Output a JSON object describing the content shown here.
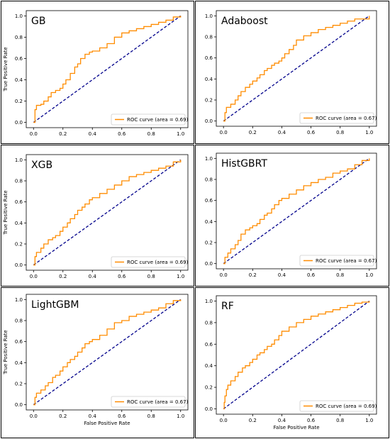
{
  "colors": {
    "roc": "#ff8c00",
    "chance": "#00008b",
    "panel_border": "#000000"
  },
  "chart_data": [
    {
      "type": "line",
      "title": "GB",
      "xlabel": "",
      "ylabel": "True Positive Rate",
      "xlim": [
        0,
        1
      ],
      "ylim": [
        0,
        1
      ],
      "xticks": [
        "0.0",
        "0.2",
        "0.4",
        "0.6",
        "0.8",
        "1.0"
      ],
      "yticks": [
        "0.0",
        "0.2",
        "0.4",
        "0.6",
        "0.8",
        "1.0"
      ],
      "legend": "ROC curve (area = 0.69)",
      "legend_position": "lower-right",
      "series": [
        {
          "x": [
            0,
            0.01,
            0.02,
            0.05,
            0.07,
            0.1,
            0.12,
            0.15,
            0.18,
            0.2,
            0.22,
            0.25,
            0.28,
            0.3,
            0.32,
            0.35,
            0.38,
            0.4,
            0.45,
            0.5,
            0.55,
            0.6,
            0.65,
            0.7,
            0.75,
            0.8,
            0.85,
            0.9,
            0.95,
            1.0
          ],
          "y": [
            0,
            0.12,
            0.16,
            0.17,
            0.2,
            0.24,
            0.28,
            0.3,
            0.32,
            0.36,
            0.4,
            0.46,
            0.52,
            0.55,
            0.6,
            0.64,
            0.66,
            0.67,
            0.7,
            0.74,
            0.8,
            0.84,
            0.86,
            0.88,
            0.9,
            0.92,
            0.94,
            0.96,
            0.99,
            1.0
          ]
        },
        {
          "x": [
            0,
            1
          ],
          "y": [
            0,
            1
          ]
        }
      ]
    },
    {
      "type": "line",
      "title": "Adaboost",
      "xlabel": "",
      "ylabel": "",
      "xlim": [
        0,
        1
      ],
      "ylim": [
        0,
        1
      ],
      "xticks": [
        "0.0",
        "0.2",
        "0.4",
        "0.6",
        "0.8",
        "1.0"
      ],
      "yticks": [
        "0.0",
        "0.2",
        "0.4",
        "0.6",
        "0.8",
        "1.0"
      ],
      "legend": "ROC curve (area = 0.67)",
      "legend_position": "lower-right",
      "series": [
        {
          "x": [
            0,
            0.01,
            0.02,
            0.05,
            0.08,
            0.1,
            0.12,
            0.15,
            0.18,
            0.2,
            0.23,
            0.25,
            0.28,
            0.3,
            0.33,
            0.35,
            0.38,
            0.4,
            0.42,
            0.45,
            0.48,
            0.5,
            0.55,
            0.6,
            0.65,
            0.7,
            0.75,
            0.8,
            0.85,
            0.9,
            1.0
          ],
          "y": [
            0,
            0.08,
            0.13,
            0.16,
            0.2,
            0.24,
            0.28,
            0.32,
            0.35,
            0.38,
            0.41,
            0.44,
            0.48,
            0.5,
            0.53,
            0.55,
            0.57,
            0.6,
            0.64,
            0.68,
            0.72,
            0.77,
            0.81,
            0.84,
            0.87,
            0.89,
            0.91,
            0.93,
            0.95,
            0.97,
            1.0
          ]
        },
        {
          "x": [
            0,
            1
          ],
          "y": [
            0,
            1
          ]
        }
      ]
    },
    {
      "type": "line",
      "title": "XGB",
      "xlabel": "",
      "ylabel": "True Positive Rate",
      "xlim": [
        0,
        1
      ],
      "ylim": [
        0,
        1
      ],
      "xticks": [
        "0.0",
        "0.2",
        "0.4",
        "0.6",
        "0.8",
        "1.0"
      ],
      "yticks": [
        "0.0",
        "0.2",
        "0.4",
        "0.6",
        "0.8",
        "1.0"
      ],
      "legend": "ROC curve (area = 0.69)",
      "legend_position": "lower-right",
      "series": [
        {
          "x": [
            0,
            0.01,
            0.02,
            0.05,
            0.07,
            0.1,
            0.13,
            0.15,
            0.18,
            0.2,
            0.23,
            0.25,
            0.28,
            0.3,
            0.33,
            0.35,
            0.38,
            0.4,
            0.45,
            0.5,
            0.55,
            0.6,
            0.65,
            0.7,
            0.75,
            0.8,
            0.85,
            0.9,
            0.95,
            1.0
          ],
          "y": [
            0,
            0.08,
            0.12,
            0.16,
            0.2,
            0.24,
            0.26,
            0.28,
            0.32,
            0.36,
            0.4,
            0.44,
            0.48,
            0.52,
            0.55,
            0.58,
            0.62,
            0.64,
            0.68,
            0.72,
            0.76,
            0.8,
            0.84,
            0.86,
            0.88,
            0.9,
            0.92,
            0.94,
            0.98,
            1.0
          ]
        },
        {
          "x": [
            0,
            1
          ],
          "y": [
            0,
            1
          ]
        }
      ]
    },
    {
      "type": "line",
      "title": "HistGBRT",
      "xlabel": "",
      "ylabel": "",
      "xlim": [
        0,
        1
      ],
      "ylim": [
        0,
        1
      ],
      "xticks": [
        "0.0",
        "0.2",
        "0.4",
        "0.6",
        "0.8",
        "1.0"
      ],
      "yticks": [
        "0.0",
        "0.2",
        "0.4",
        "0.6",
        "0.8",
        "1.0"
      ],
      "legend": "ROC curve (area = 0.67)",
      "legend_position": "lower-right",
      "series": [
        {
          "x": [
            0,
            0.01,
            0.03,
            0.05,
            0.08,
            0.1,
            0.12,
            0.15,
            0.18,
            0.2,
            0.23,
            0.25,
            0.28,
            0.3,
            0.33,
            0.35,
            0.38,
            0.4,
            0.45,
            0.5,
            0.55,
            0.6,
            0.65,
            0.7,
            0.75,
            0.8,
            0.85,
            0.9,
            0.95,
            1.0
          ],
          "y": [
            0,
            0.06,
            0.1,
            0.14,
            0.18,
            0.22,
            0.28,
            0.32,
            0.34,
            0.36,
            0.38,
            0.42,
            0.46,
            0.48,
            0.52,
            0.56,
            0.6,
            0.62,
            0.66,
            0.7,
            0.74,
            0.77,
            0.8,
            0.82,
            0.86,
            0.88,
            0.9,
            0.94,
            0.98,
            1.0
          ]
        },
        {
          "x": [
            0,
            1
          ],
          "y": [
            0,
            1
          ]
        }
      ]
    },
    {
      "type": "line",
      "title": "LightGBM",
      "xlabel": "False Positive Rate",
      "ylabel": "True Positive Rate",
      "xlim": [
        0,
        1
      ],
      "ylim": [
        0,
        1
      ],
      "xticks": [
        "0.0",
        "0.2",
        "0.4",
        "0.6",
        "0.8",
        "1.0"
      ],
      "yticks": [
        "0.0",
        "0.2",
        "0.4",
        "0.6",
        "0.8",
        "1.0"
      ],
      "legend": "ROC curve (area = 0.67)",
      "legend_position": "lower-right",
      "series": [
        {
          "x": [
            0,
            0.01,
            0.02,
            0.05,
            0.08,
            0.1,
            0.13,
            0.15,
            0.18,
            0.2,
            0.23,
            0.25,
            0.28,
            0.3,
            0.33,
            0.35,
            0.38,
            0.4,
            0.45,
            0.5,
            0.55,
            0.6,
            0.65,
            0.7,
            0.75,
            0.8,
            0.85,
            0.9,
            0.95,
            1.0
          ],
          "y": [
            0,
            0.07,
            0.11,
            0.14,
            0.18,
            0.21,
            0.26,
            0.28,
            0.32,
            0.36,
            0.4,
            0.43,
            0.46,
            0.5,
            0.54,
            0.58,
            0.6,
            0.62,
            0.66,
            0.72,
            0.78,
            0.8,
            0.84,
            0.86,
            0.88,
            0.9,
            0.92,
            0.96,
            0.99,
            1.0
          ]
        },
        {
          "x": [
            0,
            1
          ],
          "y": [
            0,
            1
          ]
        }
      ]
    },
    {
      "type": "line",
      "title": "RF",
      "xlabel": "False Positive Rate",
      "ylabel": "",
      "xlim": [
        0,
        1
      ],
      "ylim": [
        0,
        1
      ],
      "xticks": [
        "0.0",
        "0.2",
        "0.4",
        "0.6",
        "0.8",
        "1.0"
      ],
      "yticks": [
        "0.0",
        "0.2",
        "0.4",
        "0.6",
        "0.8",
        "1.0"
      ],
      "legend": "ROC curve (area = 0.69)",
      "legend_position": "lower-right",
      "series": [
        {
          "x": [
            0,
            0.005,
            0.01,
            0.02,
            0.03,
            0.05,
            0.08,
            0.1,
            0.13,
            0.15,
            0.18,
            0.2,
            0.23,
            0.25,
            0.28,
            0.3,
            0.33,
            0.35,
            0.38,
            0.4,
            0.45,
            0.5,
            0.55,
            0.6,
            0.65,
            0.7,
            0.75,
            0.8,
            0.85,
            0.9,
            0.95,
            1.0
          ],
          "y": [
            0,
            0.06,
            0.12,
            0.18,
            0.22,
            0.26,
            0.3,
            0.34,
            0.38,
            0.4,
            0.43,
            0.46,
            0.5,
            0.52,
            0.55,
            0.58,
            0.6,
            0.64,
            0.68,
            0.72,
            0.76,
            0.8,
            0.83,
            0.86,
            0.88,
            0.9,
            0.92,
            0.94,
            0.96,
            0.98,
            0.99,
            1.0
          ]
        },
        {
          "x": [
            0,
            1
          ],
          "y": [
            0,
            1
          ]
        }
      ]
    }
  ]
}
